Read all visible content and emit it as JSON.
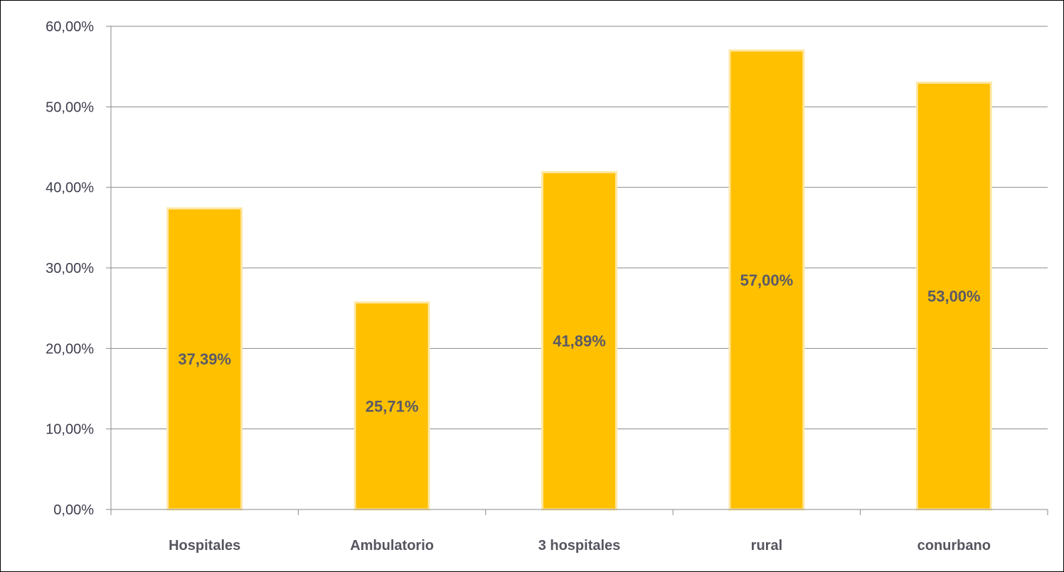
{
  "chart_data": {
    "type": "bar",
    "categories": [
      "Hospitales",
      "Ambulatorio",
      "3 hospitales",
      "rural",
      "conurbano"
    ],
    "values": [
      37.39,
      25.71,
      41.89,
      57.0,
      53.0
    ],
    "data_labels": [
      "37,39%",
      "25,71%",
      "41,89%",
      "57,00%",
      "53,00%"
    ],
    "y_ticks": [
      0,
      10,
      20,
      30,
      40,
      50,
      60
    ],
    "y_tick_labels": [
      "0,00%",
      "10,00%",
      "20,00%",
      "30,00%",
      "40,00%",
      "50,00%",
      "60,00%"
    ],
    "ylim": [
      0,
      60
    ],
    "title": "",
    "xlabel": "",
    "ylabel": "",
    "grid": true,
    "legend": "none",
    "bar_color": "#FFC000",
    "bar_edge_color": "#FFE8A6"
  }
}
